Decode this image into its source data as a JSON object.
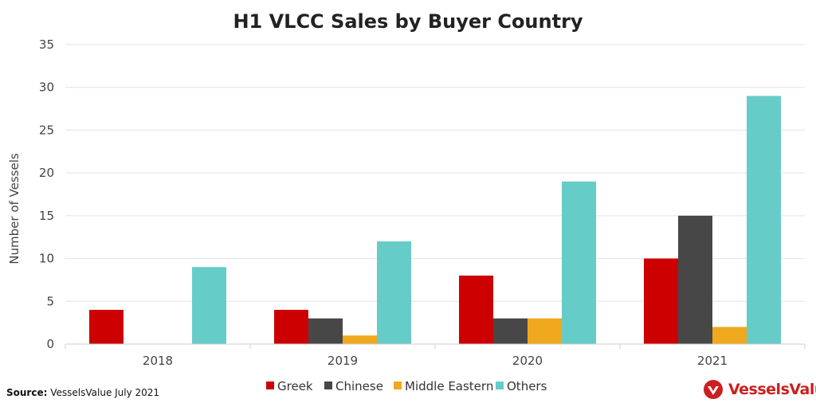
{
  "chart_data": {
    "type": "bar",
    "title": "H1 VLCC Sales by Buyer Country",
    "xlabel": "",
    "ylabel": "Number of Vessels",
    "categories": [
      "2018",
      "2019",
      "2020",
      "2021"
    ],
    "ylim": [
      0,
      35
    ],
    "yticks": [
      0,
      5,
      10,
      15,
      20,
      25,
      30,
      35
    ],
    "grid": true,
    "legend_position": "bottom",
    "series": [
      {
        "name": "Greek",
        "color": "#cc0000",
        "values": [
          4,
          4,
          8,
          10
        ]
      },
      {
        "name": "Chinese",
        "color": "#474747",
        "values": [
          0,
          3,
          3,
          15
        ]
      },
      {
        "name": "Middle Eastern",
        "color": "#f0a81e",
        "values": [
          0,
          1,
          3,
          2
        ]
      },
      {
        "name": "Others",
        "color": "#66ccc7",
        "values": [
          9,
          12,
          19,
          29
        ]
      }
    ]
  },
  "footer": {
    "source_label": "Source:",
    "source_text": "VesselsValue July 2021",
    "logo_text": "VesselsValue",
    "logo_icon": "vesselsvalue-logo-icon",
    "logo_color": "#cc1f1f"
  }
}
